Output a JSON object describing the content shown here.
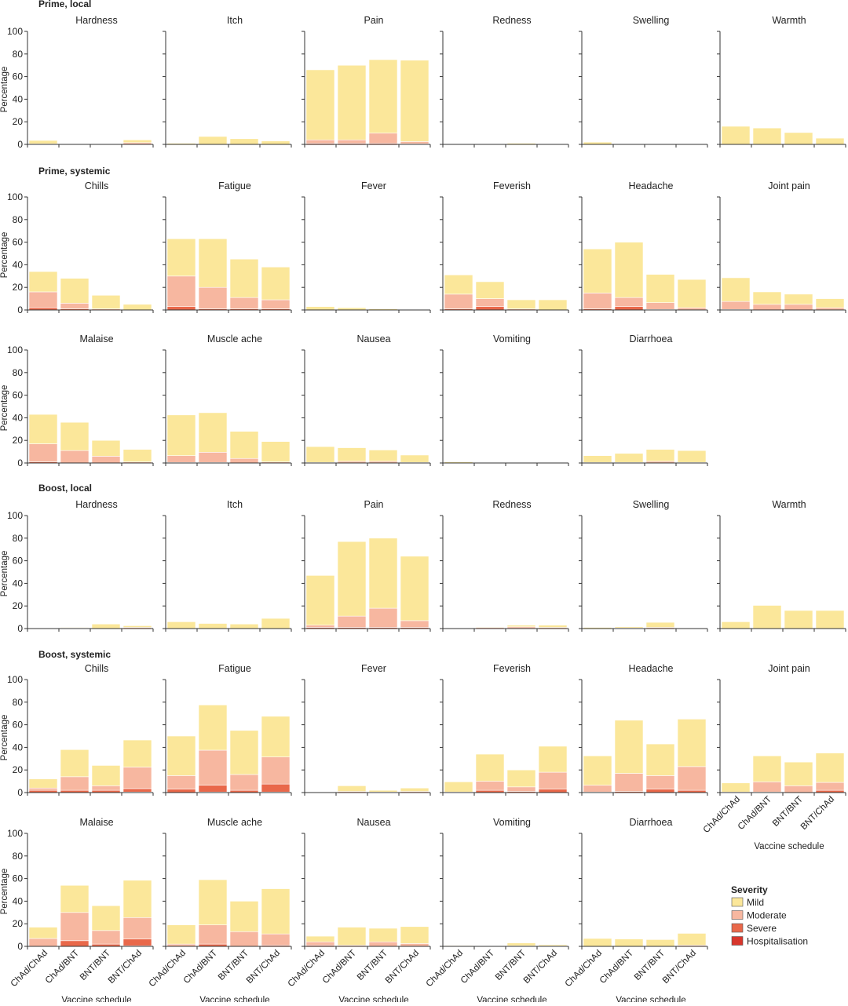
{
  "chart_data": {
    "type": "bar",
    "stacked": true,
    "ylim": [
      0,
      100
    ],
    "yticks": [
      0,
      20,
      40,
      60,
      80,
      100
    ],
    "ylabel": "Percentage",
    "xlabel": "Vaccine schedule",
    "categories": [
      "ChAd/ChAd",
      "ChAd/BNT",
      "BNT/BNT",
      "BNT/ChAd"
    ],
    "severities": [
      "Mild",
      "Moderate",
      "Severe",
      "Hospitalisation"
    ],
    "colors": {
      "Mild": "#fbe79a",
      "Moderate": "#f7b7a0",
      "Severe": "#e9684a",
      "Hospitalisation": "#d8362c"
    },
    "legend": {
      "title": "Severity",
      "position": "bottom-right"
    },
    "sections": [
      {
        "title": "Prime, local",
        "panels": [
          {
            "name": "Hardness",
            "stacks": [
              [
                3,
                0.5,
                0,
                0
              ],
              [
                0,
                0,
                0,
                0
              ],
              [
                0,
                0,
                0,
                0
              ],
              [
                2.5,
                1.5,
                0,
                0
              ]
            ]
          },
          {
            "name": "Itch",
            "stacks": [
              [
                1,
                0,
                0,
                0
              ],
              [
                7,
                0,
                0,
                0
              ],
              [
                5,
                0,
                0,
                0
              ],
              [
                3,
                0,
                0,
                0
              ]
            ]
          },
          {
            "name": "Pain",
            "stacks": [
              [
                62,
                3,
                1,
                0
              ],
              [
                66,
                3,
                1,
                0
              ],
              [
                65,
                9,
                1,
                0
              ],
              [
                72,
                2,
                0.5,
                0
              ]
            ]
          },
          {
            "name": "Redness",
            "stacks": [
              [
                0.5,
                0,
                0,
                0
              ],
              [
                0,
                0,
                0,
                0
              ],
              [
                1,
                0,
                0,
                0
              ],
              [
                0.3,
                0,
                0,
                0
              ]
            ]
          },
          {
            "name": "Swelling",
            "stacks": [
              [
                2,
                0,
                0,
                0
              ],
              [
                0,
                0,
                0,
                0
              ],
              [
                0.5,
                0,
                0,
                0
              ],
              [
                0,
                0,
                0,
                0
              ]
            ]
          },
          {
            "name": "Warmth",
            "stacks": [
              [
                16,
                0,
                0,
                0
              ],
              [
                14.5,
                0,
                0,
                0
              ],
              [
                10.5,
                0,
                0,
                0
              ],
              [
                5.5,
                0,
                0,
                0
              ]
            ]
          }
        ]
      },
      {
        "title": "Prime, systemic",
        "panels": [
          {
            "name": "Chills",
            "stacks": [
              [
                18,
                14,
                2,
                0
              ],
              [
                22,
                5,
                1,
                0
              ],
              [
                12,
                1,
                0,
                0
              ],
              [
                5,
                0,
                0,
                0
              ]
            ]
          },
          {
            "name": "Fatigue",
            "stacks": [
              [
                33,
                27,
                3,
                0
              ],
              [
                43,
                19,
                1,
                0
              ],
              [
                34,
                10,
                1,
                0
              ],
              [
                29,
                8,
                1,
                0
              ]
            ]
          },
          {
            "name": "Fever",
            "stacks": [
              [
                3,
                0,
                0,
                0
              ],
              [
                2,
                0,
                0,
                0
              ],
              [
                1,
                0,
                0,
                0
              ],
              [
                0,
                0,
                0,
                0
              ]
            ]
          },
          {
            "name": "Feverish",
            "stacks": [
              [
                17,
                13,
                1,
                0
              ],
              [
                15,
                7,
                3,
                0
              ],
              [
                8,
                1,
                0,
                0
              ],
              [
                9,
                0,
                0,
                0
              ]
            ]
          },
          {
            "name": "Headache",
            "stacks": [
              [
                39,
                14,
                1,
                0
              ],
              [
                49,
                8,
                3,
                0
              ],
              [
                25,
                6,
                0.5,
                0
              ],
              [
                25,
                2,
                0,
                0
              ]
            ]
          },
          {
            "name": "Joint pain",
            "stacks": [
              [
                21,
                7,
                0.5,
                0
              ],
              [
                11,
                5,
                0,
                0
              ],
              [
                9,
                5,
                0,
                0
              ],
              [
                8,
                2,
                0,
                0
              ]
            ]
          }
        ]
      },
      {
        "title": "",
        "panels": [
          {
            "name": "Malaise",
            "stacks": [
              [
                26,
                16,
                1,
                0
              ],
              [
                25,
                11,
                0,
                0
              ],
              [
                14,
                6,
                0,
                0
              ],
              [
                11,
                1,
                0,
                0
              ]
            ]
          },
          {
            "name": "Muscle ache",
            "stacks": [
              [
                36,
                6,
                0.5,
                0
              ],
              [
                35,
                9,
                0.5,
                0
              ],
              [
                24,
                4,
                0,
                0
              ],
              [
                18,
                1,
                0,
                0
              ]
            ]
          },
          {
            "name": "Nausea",
            "stacks": [
              [
                14,
                0.5,
                0,
                0
              ],
              [
                12,
                1.5,
                0,
                0
              ],
              [
                10,
                1.5,
                0,
                0
              ],
              [
                6.5,
                0.5,
                0,
                0
              ]
            ]
          },
          {
            "name": "Vomiting",
            "stacks": [
              [
                1,
                0,
                0,
                0
              ],
              [
                0,
                0,
                0,
                0
              ],
              [
                0,
                0,
                0,
                0
              ],
              [
                0,
                0,
                0,
                0
              ]
            ]
          },
          {
            "name": "Diarrhoea",
            "stacks": [
              [
                6,
                0.5,
                0,
                0
              ],
              [
                8,
                0.5,
                0,
                0
              ],
              [
                10.5,
                1.5,
                0,
                0
              ],
              [
                10.5,
                0.5,
                0,
                0
              ]
            ]
          }
        ]
      },
      {
        "title": "Boost, local",
        "panels": [
          {
            "name": "Hardness",
            "stacks": [
              [
                0,
                0,
                0,
                0
              ],
              [
                0.5,
                0.5,
                0,
                0
              ],
              [
                4,
                0,
                0,
                0
              ],
              [
                1.5,
                1,
                0,
                0
              ]
            ]
          },
          {
            "name": "Itch",
            "stacks": [
              [
                6,
                0,
                0,
                0
              ],
              [
                4.5,
                0,
                0,
                0
              ],
              [
                4,
                0,
                0,
                0
              ],
              [
                9,
                0,
                0,
                0
              ]
            ]
          },
          {
            "name": "Pain",
            "stacks": [
              [
                44,
                2,
                1,
                0
              ],
              [
                66,
                10,
                1,
                0
              ],
              [
                62,
                17,
                1,
                0
              ],
              [
                57,
                6,
                1,
                0
              ]
            ]
          },
          {
            "name": "Redness",
            "stacks": [
              [
                0.5,
                0,
                0,
                0
              ],
              [
                0.5,
                1,
                0,
                0
              ],
              [
                1.5,
                1.5,
                0,
                0
              ],
              [
                2,
                1,
                0,
                0
              ]
            ]
          },
          {
            "name": "Swelling",
            "stacks": [
              [
                1,
                0,
                0,
                0
              ],
              [
                1,
                0.5,
                0,
                0
              ],
              [
                4.5,
                1,
                0,
                0
              ],
              [
                0.5,
                0,
                0,
                0
              ]
            ]
          },
          {
            "name": "Warmth",
            "stacks": [
              [
                6,
                0,
                0,
                0
              ],
              [
                20.5,
                0,
                0,
                0
              ],
              [
                16,
                0,
                0,
                0
              ],
              [
                16,
                0,
                0,
                0
              ]
            ]
          }
        ]
      },
      {
        "title": "Boost, systemic",
        "panels": [
          {
            "name": "Chills",
            "stacks": [
              [
                8,
                2,
                2,
                0
              ],
              [
                24,
                12,
                2,
                0
              ],
              [
                18,
                4,
                2,
                0
              ],
              [
                24,
                19,
                3,
                0.5
              ]
            ]
          },
          {
            "name": "Fatigue",
            "stacks": [
              [
                35,
                12,
                3,
                0
              ],
              [
                40,
                31,
                6,
                0.5
              ],
              [
                39,
                14,
                2,
                0
              ],
              [
                36,
                24,
                7,
                0.5
              ]
            ]
          },
          {
            "name": "Fever",
            "stacks": [
              [
                0,
                0,
                0,
                0
              ],
              [
                5,
                1,
                0,
                0
              ],
              [
                1.5,
                0.5,
                0,
                0
              ],
              [
                3,
                1,
                0,
                0
              ]
            ]
          },
          {
            "name": "Feverish",
            "stacks": [
              [
                9,
                0.5,
                0,
                0
              ],
              [
                24,
                8,
                2,
                0
              ],
              [
                15,
                4,
                1,
                0
              ],
              [
                23,
                15,
                3,
                0
              ]
            ]
          },
          {
            "name": "Headache",
            "stacks": [
              [
                26,
                6,
                0.5,
                0
              ],
              [
                47,
                16,
                1,
                0
              ],
              [
                28,
                12,
                3,
                0
              ],
              [
                42,
                21,
                2,
                0
              ]
            ]
          },
          {
            "name": "Joint pain",
            "stacks": [
              [
                8,
                0.5,
                0,
                0
              ],
              [
                23,
                9,
                0.5,
                0
              ],
              [
                21,
                6,
                0,
                0
              ],
              [
                26,
                7,
                2,
                0
              ]
            ]
          }
        ]
      },
      {
        "title": "",
        "panels": [
          {
            "name": "Malaise",
            "stacks": [
              [
                10,
                7,
                0,
                0
              ],
              [
                24,
                25,
                5,
                0
              ],
              [
                22,
                12,
                2,
                0
              ],
              [
                33,
                19,
                6,
                0.5
              ]
            ]
          },
          {
            "name": "Muscle ache",
            "stacks": [
              [
                17,
                2,
                0,
                0
              ],
              [
                40,
                17,
                2,
                0
              ],
              [
                27,
                13,
                0,
                0
              ],
              [
                40,
                10,
                1,
                0
              ]
            ]
          },
          {
            "name": "Nausea",
            "stacks": [
              [
                5,
                3,
                1,
                0
              ],
              [
                16,
                1,
                0,
                0
              ],
              [
                12,
                4,
                0,
                0
              ],
              [
                15,
                2.5,
                0,
                0
              ]
            ]
          },
          {
            "name": "Vomiting",
            "stacks": [
              [
                0.5,
                0.5,
                0,
                0
              ],
              [
                0,
                0,
                0,
                0
              ],
              [
                2.5,
                0.5,
                0,
                0
              ],
              [
                1,
                0.5,
                0,
                0
              ]
            ]
          },
          {
            "name": "Diarrhoea",
            "stacks": [
              [
                7,
                0,
                0,
                0
              ],
              [
                6.5,
                0,
                0,
                0
              ],
              [
                6,
                0,
                0,
                0
              ],
              [
                10.5,
                1,
                0,
                0
              ]
            ]
          }
        ]
      }
    ]
  }
}
